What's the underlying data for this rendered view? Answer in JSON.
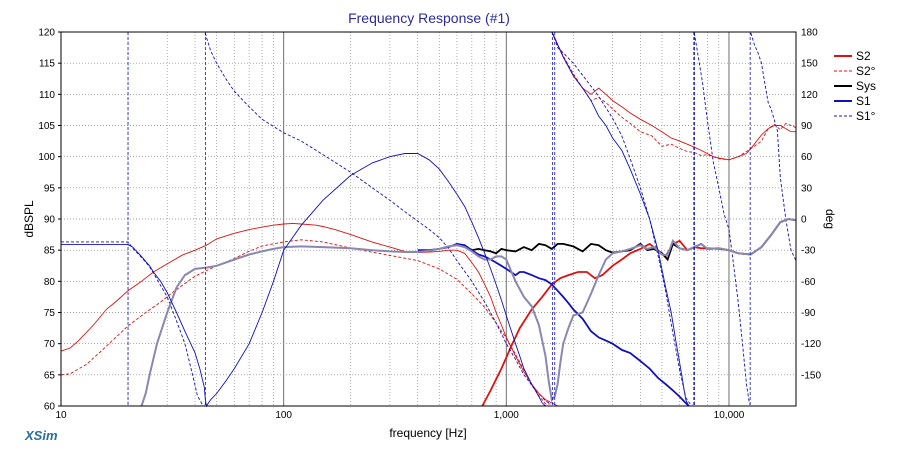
{
  "brand": "XSim",
  "chart_data": {
    "type": "line",
    "title": "Frequency Response (#1)",
    "xlabel": "frequency [Hz]",
    "ylabel": "dBSPL",
    "y2label": "deg",
    "xscale": "log",
    "xlim": [
      10,
      20000
    ],
    "ylim": [
      60,
      120
    ],
    "y2lim": [
      -180,
      180
    ],
    "x_tick_values": [
      10,
      100,
      1000,
      10000
    ],
    "x_tick_labels": [
      "10",
      "100",
      "1,000",
      "10,000"
    ],
    "y_ticks": [
      "60",
      "65",
      "70",
      "75",
      "80",
      "85",
      "90",
      "95",
      "100",
      "105",
      "110",
      "115",
      "120"
    ],
    "y2_ticks": [
      "-150",
      "-120",
      "-90",
      "-60",
      "-30",
      "0",
      "30",
      "60",
      "90",
      "120",
      "150",
      "180"
    ],
    "y2_tick_values": [
      -150,
      -120,
      -90,
      -60,
      -30,
      0,
      30,
      60,
      90,
      120,
      150,
      180
    ],
    "grid": true,
    "legend_position": "right",
    "colors": {
      "S2": "#e01010",
      "S2deg": "#e01010",
      "Sys": "#000000",
      "S1": "#1010c0",
      "S1deg": "#1010c0",
      "gray": "#8888b0"
    },
    "series": [
      {
        "name": "S2",
        "axis": "left",
        "style": "solid",
        "color": "#e01010",
        "width": 1.8,
        "x": [
          780,
          850,
          950,
          1050,
          1150,
          1300,
          1450,
          1600,
          1750,
          1900,
          2100,
          2300,
          2500,
          2700,
          3000,
          3300,
          3600,
          4000,
          4400,
          4800,
          5200,
          5600,
          6000,
          6500,
          7000,
          7500,
          8000,
          9000,
          10000,
          11000,
          12500,
          14000,
          15500,
          17000,
          18500,
          20000
        ],
        "y": [
          60,
          62.5,
          66,
          69.5,
          72.5,
          75.5,
          77.5,
          79.5,
          80.5,
          81,
          81.5,
          81.5,
          80.5,
          81,
          82.5,
          83.5,
          84.5,
          85.2,
          86,
          85,
          84,
          86,
          86.5,
          85,
          85.5,
          85.3,
          85.3,
          85.2,
          85,
          84.5,
          84.3,
          85.5,
          87.5,
          89.5,
          90,
          89.8
        ]
      },
      {
        "name": "S2°",
        "axis": "right",
        "style": "dashed-thin",
        "color": "#e01010",
        "width": 0.9,
        "x": [
          10,
          11,
          13,
          15,
          17,
          20,
          24,
          28,
          32,
          40,
          50,
          60,
          70,
          80,
          100,
          120,
          150,
          200,
          250,
          300,
          400,
          500,
          600,
          700,
          800,
          900,
          1000,
          1100,
          1200,
          1300,
          1400,
          1500,
          1580,
          1620,
          1650,
          1700,
          1800,
          2000,
          2200,
          2400,
          2600,
          2800,
          3000,
          3300,
          3600,
          4000,
          4500,
          5000,
          5500,
          6000,
          6500,
          7000,
          7500,
          8000,
          9000,
          10000,
          11000,
          12000,
          13000,
          14000,
          15000,
          16000,
          17000,
          18000,
          20000
        ],
        "y": [
          -150,
          -149,
          -140,
          -128,
          -117,
          -103,
          -90,
          -80,
          -70,
          -55,
          -45,
          -38,
          -31,
          -26,
          -22,
          -20,
          -22,
          -28,
          -32,
          -35,
          -40,
          -48,
          -58,
          -72,
          -85,
          -100,
          -115,
          -130,
          -145,
          -160,
          -170,
          -178,
          -178,
          178,
          175,
          168,
          157,
          140,
          126,
          114,
          117,
          112,
          106,
          98,
          92,
          84,
          80,
          70,
          72,
          68,
          65,
          64,
          61,
          62,
          58,
          57,
          60,
          65,
          70,
          75,
          87,
          91,
          86,
          92,
          88
        ]
      },
      {
        "name": "Sys",
        "axis": "left",
        "style": "solid",
        "color": "#000000",
        "width": 1.8,
        "x": [
          600,
          650,
          700,
          750,
          800,
          850,
          900,
          950,
          1000,
          1100,
          1200,
          1300,
          1400,
          1500,
          1600,
          1700,
          1800,
          2000,
          2200,
          2400,
          2600,
          2800,
          3000,
          3300,
          3600,
          4000,
          4300,
          4600,
          5000,
          5300,
          5600,
          6000,
          6500,
          7000,
          7500,
          8000,
          9000,
          10000,
          11000,
          12500,
          14000,
          15500,
          17000,
          18500,
          20000
        ],
        "y": [
          86,
          85.5,
          85,
          85.2,
          85,
          84.8,
          84.5,
          85.2,
          85,
          84.8,
          85.5,
          85,
          86,
          85.8,
          85.2,
          86,
          86,
          85.6,
          84.8,
          86,
          85.8,
          85,
          84.6,
          84.8,
          85,
          86,
          85,
          85.2,
          84.5,
          83.5,
          86,
          85.3,
          85,
          85.5,
          86,
          85.2,
          85.3,
          85,
          84.5,
          84.3,
          85.5,
          87.5,
          89.5,
          90,
          89.8
        ]
      },
      {
        "name": "S1",
        "axis": "left",
        "style": "solid",
        "color": "#1010c0",
        "width": 1.8,
        "x": [
          400,
          450,
          500,
          550,
          600,
          650,
          700,
          750,
          800,
          850,
          900,
          950,
          1000,
          1050,
          1100,
          1150,
          1200,
          1300,
          1400,
          1500,
          1600,
          1700,
          1800,
          1900,
          2000,
          2200,
          2400,
          2600,
          2800,
          3000,
          3300,
          3600,
          4000,
          4400,
          4800,
          5200,
          5600,
          6000,
          6300,
          6600
        ],
        "y": [
          85,
          85,
          85.2,
          85.5,
          86,
          85.8,
          85,
          84.3,
          84,
          83.5,
          83,
          82.5,
          82,
          81.5,
          81,
          81.5,
          81.5,
          81,
          80.5,
          80.2,
          79.5,
          78.5,
          77.5,
          76.5,
          75.5,
          74,
          72,
          71,
          70.5,
          70,
          69,
          68.5,
          67.2,
          66,
          64.5,
          63.5,
          62.5,
          61.5,
          60.7,
          60
        ]
      },
      {
        "name": "S1°",
        "axis": "right",
        "style": "dashed-thin",
        "color": "#1010c0",
        "width": 0.9,
        "x": [
          10,
          20,
          21,
          23,
          25,
          27,
          30,
          33,
          36,
          39,
          41,
          43,
          44,
          44.5,
          45,
          47,
          50,
          55,
          60,
          70,
          80,
          100,
          120,
          150,
          200,
          250,
          300,
          350,
          400,
          450,
          500,
          550,
          600,
          700,
          800,
          900,
          1000,
          1100,
          1200,
          1300,
          1400,
          1500,
          1580,
          1610,
          1630,
          1650,
          1700,
          1800,
          2000,
          2300,
          2600,
          3000,
          3300,
          3600,
          4000,
          4400,
          4800,
          5200,
          5600,
          6000,
          6400,
          6700,
          6850,
          6950,
          7000,
          7100,
          7300,
          7600,
          8000,
          8500,
          9000,
          9500,
          10000,
          10500,
          11000,
          11500,
          12000,
          12300,
          12450,
          12550,
          12700,
          13000,
          13500,
          14000,
          14500,
          15000,
          15500,
          16000,
          16500,
          17000,
          18000,
          19000,
          20000
        ],
        "y": [
          -22,
          -22,
          -28,
          -37,
          -46,
          -58,
          -75,
          -98,
          -120,
          -150,
          -170,
          -178,
          -179,
          179,
          175,
          162,
          150,
          135,
          123,
          108,
          96,
          83,
          75,
          62,
          45,
          30,
          18,
          7,
          -2,
          -10,
          -18,
          -28,
          -40,
          -60,
          -80,
          -100,
          -120,
          -135,
          -150,
          -160,
          -168,
          -175,
          -178,
          179,
          177,
          174,
          165,
          160,
          150,
          133,
          118,
          97,
          80,
          58,
          30,
          0,
          -35,
          -70,
          -110,
          -145,
          -172,
          -178,
          -179,
          179,
          178,
          170,
          155,
          132,
          95,
          55,
          30,
          5,
          -10,
          -45,
          -80,
          -120,
          -160,
          -175,
          -179,
          179,
          175,
          168,
          160,
          150,
          130,
          112,
          105,
          95,
          85,
          40,
          0,
          -30,
          -40
        ]
      },
      {
        "name": "S2 raw",
        "axis": "left",
        "style": "solid",
        "color": "#e01010",
        "width": 0.9,
        "legend": false,
        "x": [
          10,
          11,
          12,
          14,
          16,
          18,
          20,
          23,
          26,
          30,
          35,
          40,
          45,
          50,
          60,
          70,
          80,
          90,
          100,
          110,
          120,
          130,
          140,
          150,
          170,
          200,
          250,
          300,
          350,
          400,
          450,
          500,
          550,
          600,
          650,
          700,
          750,
          800,
          850,
          900,
          950,
          1000,
          1100,
          1200,
          1300,
          1400,
          1500,
          1600,
          1700
        ],
        "y": [
          68.8,
          69.3,
          70.5,
          73,
          75.5,
          77,
          78.5,
          80,
          81.5,
          82.8,
          84.2,
          85,
          85.8,
          86.8,
          87.7,
          88.3,
          88.7,
          89,
          89.2,
          89.3,
          89.2,
          89.1,
          89,
          88.8,
          88.3,
          87.5,
          86.3,
          85.5,
          84.8,
          84.6,
          84.7,
          84.8,
          85,
          85,
          84.5,
          83,
          81.5,
          79.5,
          77.5,
          75,
          73,
          71,
          68,
          65.5,
          63.5,
          62,
          61,
          60.5,
          60
        ]
      },
      {
        "name": "Sys raw",
        "axis": "left",
        "style": "solid",
        "color": "#8888b0",
        "width": 2.0,
        "legend": false,
        "x": [
          23,
          24,
          25,
          27,
          30,
          33,
          36,
          40,
          45,
          50,
          55,
          60,
          70,
          80,
          90,
          100,
          120,
          150,
          200,
          250,
          300,
          350,
          400,
          450,
          500,
          550,
          600,
          650,
          700,
          750,
          800,
          850,
          900,
          950,
          1000,
          1100,
          1200,
          1300,
          1400,
          1500,
          1550,
          1600,
          1650,
          1700,
          1750,
          1800,
          1900,
          2000,
          2200,
          2400,
          2600,
          2800,
          3000,
          3300,
          3600,
          4000,
          4300,
          4600,
          5000,
          5300,
          5600,
          6000,
          6500,
          7000,
          7500,
          8000,
          9000,
          10000,
          11000,
          12500,
          14000,
          15500,
          17000,
          18500,
          20000
        ],
        "y": [
          60,
          62,
          65,
          70,
          75,
          79,
          81,
          82,
          82.2,
          82.5,
          83,
          83.5,
          84.3,
          84.8,
          85.2,
          85.5,
          85.6,
          85.5,
          85.3,
          85,
          84.8,
          84.7,
          84.7,
          84.9,
          85.2,
          85.6,
          85.8,
          85.5,
          84.8,
          84,
          83.5,
          83.5,
          84,
          84,
          83.5,
          80,
          77.5,
          76,
          73,
          68,
          64,
          61,
          61.5,
          63.5,
          67,
          70,
          72.5,
          74.5,
          75,
          78,
          81,
          83.5,
          84.5,
          84.8,
          85.2,
          85.8,
          85.2,
          85.5,
          84.3,
          84.2,
          86.5,
          85.3,
          85,
          85.5,
          86,
          85.2,
          85.3,
          85,
          84.5,
          84.3,
          85.5,
          87.5,
          89.5,
          90,
          89.8
        ]
      },
      {
        "name": "S1 raw",
        "axis": "left",
        "style": "solid",
        "color": "#1010c0",
        "width": 0.9,
        "legend": false,
        "x": [
          10,
          20,
          21,
          22,
          23,
          24,
          25,
          26,
          28,
          30,
          33,
          36,
          40,
          42,
          44,
          44.5,
          45,
          47,
          50,
          55,
          60,
          70,
          80,
          90,
          100,
          120,
          150,
          200,
          250,
          300,
          350,
          400,
          450,
          500,
          550,
          600,
          650,
          700,
          750,
          800,
          850,
          900,
          950,
          1000,
          1100,
          1150,
          1200,
          1300,
          1400,
          1450,
          1500,
          1550
        ],
        "y": [
          85.9,
          85.9,
          85.5,
          84.7,
          84,
          83.2,
          82.5,
          81.5,
          80,
          78.2,
          75,
          72,
          68.5,
          66,
          63,
          61,
          60,
          61,
          62,
          64,
          66,
          70,
          75,
          80,
          85,
          89,
          93,
          97,
          99,
          100,
          100.5,
          100.5,
          99.5,
          98,
          96,
          94,
          92,
          89.5,
          87,
          84.5,
          82,
          79.5,
          77,
          74.5,
          70,
          68,
          66,
          63.5,
          61.5,
          60.5,
          60,
          60
        ]
      },
      {
        "name": "S2 high",
        "axis": "left",
        "style": "solid",
        "color": "#e01010",
        "width": 0.9,
        "legend": false,
        "x": [
          1600,
          1700,
          1800,
          2000,
          2200,
          2400,
          2600,
          2800,
          3000,
          3300,
          3600,
          4000,
          4500,
          5000,
          5500,
          6000,
          6500,
          7000,
          7500,
          8000,
          8500,
          9000,
          10000,
          11000,
          12000,
          13000,
          14000,
          15000,
          16000,
          17000,
          18000,
          19000,
          20000
        ],
        "y": [
          120,
          118,
          116,
          113,
          111,
          110,
          111,
          110,
          109,
          108,
          107,
          106,
          105,
          104,
          103,
          102.5,
          102,
          101.5,
          101,
          100.5,
          100,
          99.8,
          99.5,
          100,
          100.5,
          102,
          103.5,
          104.5,
          105,
          105,
          104.5,
          104,
          104
        ]
      },
      {
        "name": "S1 high",
        "axis": "left",
        "style": "solid",
        "color": "#1010c0",
        "width": 0.9,
        "legend": false,
        "x": [
          1600,
          1700,
          1800,
          2000,
          2200,
          2400,
          2600,
          2800,
          3000,
          3300,
          3600,
          4000,
          4400,
          4800,
          5200,
          5500,
          5800,
          6000,
          6200,
          6400,
          6600
        ],
        "y": [
          120,
          118,
          116,
          113,
          111,
          109,
          106.5,
          105,
          103,
          101,
          98,
          94,
          90,
          85,
          79,
          75,
          70,
          67,
          64,
          61,
          60
        ]
      }
    ],
    "vertical_markers_phase": [
      20,
      44.5,
      1610,
      1650,
      6950,
      7000,
      12450
    ]
  },
  "legend": {
    "items": [
      {
        "label": "S2",
        "color": "#e01010",
        "style": "solid"
      },
      {
        "label": "S2°",
        "color": "#e01010",
        "style": "dashed"
      },
      {
        "label": "Sys",
        "color": "#000000",
        "style": "solid"
      },
      {
        "label": "S1",
        "color": "#1010c0",
        "style": "solid"
      },
      {
        "label": "S1°",
        "color": "#1010c0",
        "style": "dashed"
      }
    ]
  }
}
